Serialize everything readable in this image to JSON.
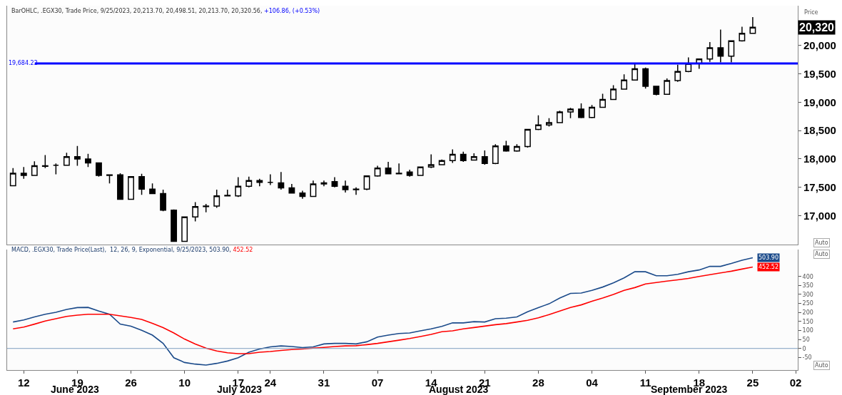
{
  "chart_data": [
    {
      "type": "candlestick",
      "title": "BarOHLC, .EGX30, Trade Price, 9/25/2023, 20,213.70, 20,498.51, 20,213.70, 20,320.56,",
      "subtitle": "+106.86, (+0.53%)",
      "ylabel": "Price",
      "categories": [
        null,
        "12",
        null,
        null,
        null,
        null,
        "19",
        null,
        null,
        null,
        null,
        "26",
        null,
        null,
        null,
        null,
        "10",
        null,
        null,
        null,
        null,
        "17",
        null,
        null,
        "24",
        null,
        null,
        null,
        null,
        "31",
        null,
        null,
        null,
        null,
        "07",
        null,
        null,
        null,
        null,
        "14",
        null,
        null,
        null,
        null,
        "21",
        null,
        null,
        null,
        null,
        "28",
        null,
        null,
        null,
        null,
        "04",
        null,
        null,
        null,
        null,
        "11",
        null,
        null,
        null,
        null,
        "18",
        null,
        null,
        null,
        null,
        "25",
        null,
        null,
        null,
        "02"
      ],
      "ohlc": [
        [
          17530,
          17840,
          17520,
          17750
        ],
        [
          17750,
          17860,
          17650,
          17710
        ],
        [
          17710,
          17960,
          17700,
          17880
        ],
        [
          17880,
          18070,
          17840,
          17870
        ],
        [
          17890,
          17920,
          17730,
          17890
        ],
        [
          17890,
          18110,
          17890,
          18040
        ],
        [
          18040,
          18230,
          17880,
          18000
        ],
        [
          18000,
          18090,
          17860,
          17930
        ],
        [
          17930,
          17940,
          17690,
          17710
        ],
        [
          17710,
          17730,
          17570,
          17720
        ],
        [
          17720,
          17750,
          17290,
          17290
        ],
        [
          17290,
          17690,
          17280,
          17690
        ],
        [
          17690,
          17740,
          17370,
          17470
        ],
        [
          17470,
          17570,
          17380,
          17390
        ],
        [
          17390,
          17460,
          17080,
          17100
        ],
        [
          17100,
          17110,
          16550,
          16550
        ],
        [
          16550,
          16980,
          16550,
          16980
        ],
        [
          16980,
          17240,
          16900,
          17160
        ],
        [
          17160,
          17210,
          17060,
          17170
        ],
        [
          17170,
          17460,
          17140,
          17350
        ],
        [
          17350,
          17460,
          17340,
          17360
        ],
        [
          17350,
          17680,
          17330,
          17520
        ],
        [
          17520,
          17690,
          17500,
          17620
        ],
        [
          17620,
          17650,
          17520,
          17590
        ],
        [
          17590,
          17730,
          17540,
          17590
        ],
        [
          17580,
          17770,
          17460,
          17490
        ],
        [
          17490,
          17560,
          17390,
          17400
        ],
        [
          17400,
          17440,
          17300,
          17340
        ],
        [
          17340,
          17620,
          17330,
          17560
        ],
        [
          17560,
          17620,
          17520,
          17580
        ],
        [
          17600,
          17680,
          17500,
          17520
        ],
        [
          17520,
          17620,
          17410,
          17460
        ],
        [
          17460,
          17500,
          17370,
          17470
        ],
        [
          17470,
          17710,
          17450,
          17700
        ],
        [
          17700,
          17880,
          17690,
          17840
        ],
        [
          17840,
          17950,
          17740,
          17740
        ],
        [
          17740,
          17920,
          17740,
          17750
        ],
        [
          17770,
          17810,
          17690,
          17710
        ],
        [
          17710,
          17860,
          17700,
          17860
        ],
        [
          17860,
          18080,
          17840,
          17900
        ],
        [
          17900,
          17990,
          17890,
          17970
        ],
        [
          17970,
          18170,
          17930,
          18080
        ],
        [
          18080,
          18130,
          17950,
          17970
        ],
        [
          17980,
          18100,
          17970,
          18040
        ],
        [
          18040,
          18150,
          17900,
          17920
        ],
        [
          17920,
          18260,
          17910,
          18230
        ],
        [
          18230,
          18320,
          18130,
          18140
        ],
        [
          18140,
          18260,
          18130,
          18220
        ],
        [
          18220,
          18520,
          18200,
          18520
        ],
        [
          18520,
          18770,
          18510,
          18600
        ],
        [
          18600,
          18720,
          18570,
          18640
        ],
        [
          18640,
          18850,
          18630,
          18830
        ],
        [
          18830,
          18900,
          18720,
          18880
        ],
        [
          18880,
          18980,
          18720,
          18730
        ],
        [
          18730,
          18950,
          18720,
          18910
        ],
        [
          18910,
          19150,
          18900,
          19050
        ],
        [
          19050,
          19300,
          19040,
          19230
        ],
        [
          19230,
          19490,
          19220,
          19390
        ],
        [
          19390,
          19690,
          19380,
          19590
        ],
        [
          19590,
          19610,
          19240,
          19280
        ],
        [
          19280,
          19290,
          19120,
          19140
        ],
        [
          19140,
          19420,
          19140,
          19380
        ],
        [
          19380,
          19660,
          19360,
          19540
        ],
        [
          19540,
          19790,
          19530,
          19680
        ],
        [
          19680,
          19770,
          19590,
          19760
        ],
        [
          19760,
          20060,
          19710,
          19960
        ],
        [
          19960,
          20280,
          19700,
          19810
        ],
        [
          19810,
          20090,
          19700,
          20080
        ],
        [
          20080,
          20330,
          20070,
          20213.7
        ],
        [
          20213.7,
          20498.51,
          20213.7,
          20320.56
        ],
        null,
        null,
        null,
        null
      ],
      "ylim": [
        16490,
        20700
      ],
      "yticks": [
        {
          "value": 17000,
          "label": "17,000"
        },
        {
          "value": 17500,
          "label": "17,500"
        },
        {
          "value": 18000,
          "label": "18,000"
        },
        {
          "value": 18500,
          "label": "18,500"
        },
        {
          "value": 19000,
          "label": "19,000"
        },
        {
          "value": 19500,
          "label": "19,500"
        },
        {
          "value": 20000,
          "label": "20,000"
        }
      ],
      "ref_lines": [
        {
          "axis": "y",
          "value": 19684.22,
          "label": "19,684.22",
          "color": "#0000ff"
        }
      ],
      "annotations": [
        "20,320",
        "Auto"
      ],
      "tick_labels": "y"
    },
    {
      "type": "line",
      "title": "MACD, .EGX30, Trade Price(Last),  12, 26, 9, Exponential, 9/25/2023, 503.90,",
      "subtitle": "452.52",
      "categories": [
        null,
        "12",
        null,
        null,
        null,
        null,
        "19",
        null,
        null,
        null,
        null,
        "26",
        null,
        null,
        null,
        null,
        "10",
        null,
        null,
        null,
        null,
        "17",
        null,
        null,
        "24",
        null,
        null,
        null,
        null,
        "31",
        null,
        null,
        null,
        null,
        "07",
        null,
        null,
        null,
        null,
        "14",
        null,
        null,
        null,
        null,
        "21",
        null,
        null,
        null,
        null,
        "28",
        null,
        null,
        null,
        null,
        "04",
        null,
        null,
        null,
        null,
        "11",
        null,
        null,
        null,
        null,
        "18",
        null,
        null,
        null,
        null,
        "25",
        null,
        null,
        null,
        "02"
      ],
      "series": [
        {
          "color": "#1a4a8a",
          "values": [
            147,
            158,
            175,
            190,
            201,
            217,
            227,
            228,
            208,
            190,
            135,
            124,
            101,
            74,
            28,
            -52,
            -78,
            -87,
            -92,
            -83,
            -70,
            -52,
            -21,
            -3,
            9,
            14,
            11,
            5,
            9,
            25,
            28,
            28,
            25,
            37,
            63,
            74,
            83,
            86,
            98,
            109,
            123,
            142,
            142,
            149,
            147,
            165,
            168,
            175,
            204,
            227,
            248,
            280,
            306,
            308,
            323,
            341,
            364,
            392,
            426,
            426,
            404,
            404,
            412,
            426,
            436,
            456,
            456,
            472,
            490,
            503.9,
            null,
            null,
            null,
            null
          ],
          "value_labels": [
            null,
            null,
            null,
            null,
            null,
            null,
            null,
            null,
            null,
            null,
            null,
            null,
            null,
            null,
            null,
            null,
            null,
            null,
            null,
            null,
            null,
            null,
            null,
            null,
            null,
            null,
            null,
            null,
            null,
            null,
            null,
            null,
            null,
            null,
            null,
            null,
            null,
            null,
            null,
            null,
            null,
            null,
            null,
            null,
            null,
            null,
            null,
            null,
            null,
            null,
            null,
            null,
            null,
            null,
            null,
            null,
            null,
            null,
            null,
            null,
            null,
            null,
            null,
            null,
            null,
            null,
            null,
            null,
            null,
            "503.90",
            null,
            null,
            null,
            null
          ]
        },
        {
          "color": "#ff0000",
          "values": [
            109,
            119,
            135,
            152,
            165,
            178,
            185,
            190,
            190,
            190,
            181,
            172,
            161,
            139,
            116,
            86,
            52,
            25,
            2,
            -14,
            -24,
            -29,
            -29,
            -21,
            -17,
            -11,
            -6,
            -3,
            2,
            6,
            11,
            14,
            15,
            21,
            28,
            37,
            46,
            55,
            66,
            78,
            93,
            98,
            109,
            116,
            124,
            132,
            138,
            147,
            156,
            170,
            188,
            208,
            228,
            242,
            262,
            280,
            300,
            323,
            338,
            358,
            366,
            374,
            381,
            389,
            400,
            410,
            420,
            429,
            441,
            452.52,
            null,
            null,
            null,
            null
          ],
          "value_labels": [
            null,
            null,
            null,
            null,
            null,
            null,
            null,
            null,
            null,
            null,
            null,
            null,
            null,
            null,
            null,
            null,
            null,
            null,
            null,
            null,
            null,
            null,
            null,
            null,
            null,
            null,
            null,
            null,
            null,
            null,
            null,
            null,
            null,
            null,
            null,
            null,
            null,
            null,
            null,
            null,
            null,
            null,
            null,
            null,
            null,
            null,
            null,
            null,
            null,
            null,
            null,
            null,
            null,
            null,
            null,
            null,
            null,
            null,
            null,
            null,
            null,
            null,
            null,
            null,
            null,
            null,
            null,
            null,
            null,
            "452.52",
            null,
            null,
            null,
            null
          ]
        }
      ],
      "ylim": [
        -120,
        550
      ],
      "yticks": [
        -50,
        0,
        50,
        100,
        150,
        200,
        250,
        300,
        350,
        400
      ],
      "ref_lines": [
        {
          "axis": "y",
          "value": 0,
          "color": "#7f9fbf"
        }
      ],
      "annotations": [
        "June 2023",
        "July 2023",
        "August 2023",
        "September 2023",
        "Auto",
        "Auto"
      ]
    }
  ]
}
